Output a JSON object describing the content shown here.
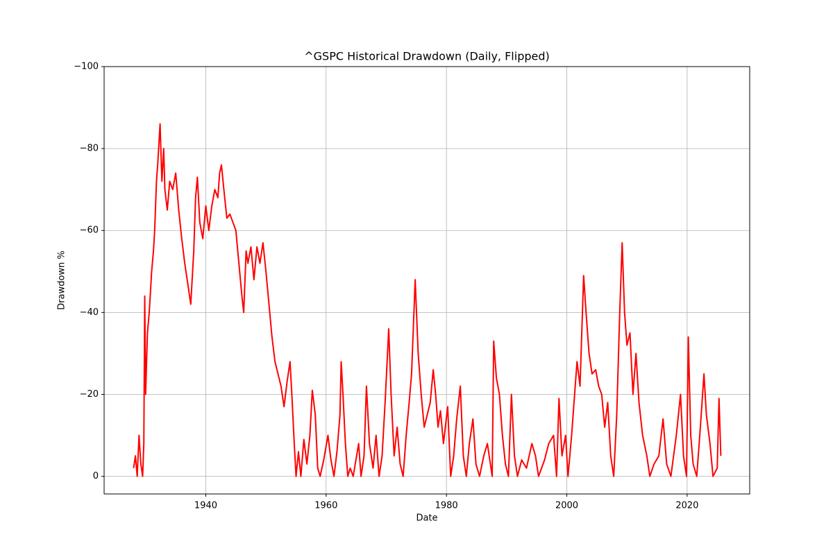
{
  "chart_data": {
    "type": "line",
    "title": "^GSPC Historical Drawdown (Daily, Flipped)",
    "x_label": "Date",
    "y_label": "Drawdown %",
    "color": "#ff0000",
    "grid": true,
    "xlim": [
      1923.1,
      2030.4
    ],
    "ylim": [
      4.3,
      -100
    ],
    "xticks": [
      1940,
      1960,
      1980,
      2000,
      2020
    ],
    "yticks": [
      0,
      {
        "value": -20,
        "label": "−20"
      },
      {
        "value": -40,
        "label": "−40"
      },
      {
        "value": -60,
        "label": "−60"
      },
      {
        "value": -80,
        "label": "−80"
      },
      {
        "value": -100,
        "label": "−100"
      }
    ],
    "x": [
      1928.0,
      1928.3,
      1928.6,
      1928.9,
      1929.2,
      1929.5,
      1929.7,
      1929.85,
      1930.0,
      1930.3,
      1930.6,
      1930.8,
      1931.0,
      1931.3,
      1931.5,
      1931.8,
      1932.0,
      1932.4,
      1932.7,
      1933.0,
      1933.2,
      1933.6,
      1934.0,
      1934.5,
      1935.0,
      1935.5,
      1936.0,
      1936.5,
      1937.0,
      1937.5,
      1938.0,
      1938.3,
      1938.6,
      1939.0,
      1939.5,
      1940.0,
      1940.5,
      1941.0,
      1941.5,
      1942.0,
      1942.3,
      1942.6,
      1943.0,
      1943.5,
      1944.0,
      1944.5,
      1945.0,
      1945.5,
      1946.0,
      1946.3,
      1946.7,
      1947.0,
      1947.5,
      1948.0,
      1948.5,
      1949.0,
      1949.5,
      1950.0,
      1950.5,
      1951.0,
      1951.5,
      1952.0,
      1952.5,
      1953.0,
      1953.5,
      1954.0,
      1954.3,
      1954.7,
      1955.0,
      1955.4,
      1955.8,
      1956.3,
      1956.8,
      1957.3,
      1957.7,
      1958.2,
      1958.6,
      1959.0,
      1959.6,
      1960.3,
      1960.8,
      1961.3,
      1961.8,
      1962.3,
      1962.5,
      1962.8,
      1963.2,
      1963.6,
      1964.0,
      1964.5,
      1965.4,
      1965.8,
      1966.3,
      1966.7,
      1967.2,
      1967.8,
      1968.3,
      1968.8,
      1969.3,
      1969.8,
      1970.4,
      1970.8,
      1971.3,
      1971.8,
      1972.3,
      1972.8,
      1973.3,
      1973.8,
      1974.2,
      1974.8,
      1975.3,
      1975.8,
      1976.3,
      1976.8,
      1977.3,
      1977.8,
      1978.2,
      1978.6,
      1979.0,
      1979.5,
      1980.2,
      1980.7,
      1981.2,
      1981.7,
      1982.3,
      1982.8,
      1983.3,
      1983.8,
      1984.4,
      1984.9,
      1985.5,
      1986.2,
      1986.8,
      1987.6,
      1987.85,
      1988.3,
      1988.8,
      1989.3,
      1989.8,
      1990.3,
      1990.8,
      1991.3,
      1991.8,
      1992.5,
      1993.3,
      1994.2,
      1994.8,
      1995.3,
      1996.3,
      1997.0,
      1997.8,
      1998.3,
      1998.7,
      1999.2,
      1999.8,
      2000.2,
      2000.8,
      2001.3,
      2001.7,
      2002.2,
      2002.8,
      2003.2,
      2003.7,
      2004.2,
      2004.8,
      2005.3,
      2005.8,
      2006.3,
      2006.8,
      2007.3,
      2007.8,
      2008.3,
      2008.8,
      2009.2,
      2009.6,
      2010.0,
      2010.5,
      2011.0,
      2011.5,
      2012.0,
      2012.6,
      2013.3,
      2013.8,
      2014.5,
      2015.3,
      2016.0,
      2016.6,
      2017.3,
      2018.2,
      2018.9,
      2019.4,
      2019.9,
      2020.2,
      2020.6,
      2021.0,
      2021.6,
      2022.2,
      2022.8,
      2023.2,
      2023.8,
      2024.3,
      2025.0,
      2025.3,
      2025.6
    ],
    "values": [
      -2,
      -5,
      0,
      -10,
      -3,
      0,
      -8,
      -44,
      -20,
      -35,
      -40,
      -45,
      -50,
      -55,
      -60,
      -72,
      -76,
      -86,
      -72,
      -80,
      -70,
      -65,
      -72,
      -70,
      -74,
      -65,
      -58,
      -52,
      -47,
      -42,
      -55,
      -68,
      -73,
      -62,
      -58,
      -66,
      -60,
      -66,
      -70,
      -68,
      -74,
      -76,
      -70,
      -63,
      -64,
      -62,
      -60,
      -52,
      -44,
      -40,
      -55,
      -52,
      -56,
      -48,
      -56,
      -52,
      -57,
      -50,
      -42,
      -34,
      -28,
      -25,
      -22,
      -17,
      -23,
      -28,
      -20,
      -8,
      0,
      -6,
      0,
      -9,
      -3,
      -10,
      -21,
      -15,
      -2,
      0,
      -4,
      -10,
      -4,
      0,
      -6,
      -15,
      -28,
      -20,
      -8,
      0,
      -2,
      0,
      -8,
      0,
      -5,
      -22,
      -8,
      -2,
      -10,
      0,
      -5,
      -18,
      -36,
      -20,
      -5,
      -12,
      -3,
      0,
      -10,
      -18,
      -25,
      -48,
      -30,
      -20,
      -12,
      -15,
      -18,
      -26,
      -20,
      -12,
      -16,
      -8,
      -17,
      0,
      -5,
      -14,
      -22,
      -5,
      0,
      -8,
      -14,
      -3,
      0,
      -5,
      -8,
      0,
      -33,
      -24,
      -20,
      -10,
      -3,
      0,
      -20,
      -5,
      0,
      -4,
      -2,
      -8,
      -5,
      0,
      -4,
      -8,
      -10,
      0,
      -19,
      -5,
      -10,
      0,
      -10,
      -20,
      -28,
      -22,
      -49,
      -40,
      -30,
      -25,
      -26,
      -22,
      -20,
      -12,
      -18,
      -5,
      0,
      -15,
      -40,
      -57,
      -40,
      -32,
      -35,
      -20,
      -30,
      -18,
      -10,
      -5,
      0,
      -3,
      -5,
      -14,
      -3,
      0,
      -10,
      -20,
      -5,
      0,
      -34,
      -10,
      -3,
      0,
      -12,
      -25,
      -15,
      -8,
      0,
      -2,
      -19,
      -5
    ]
  }
}
